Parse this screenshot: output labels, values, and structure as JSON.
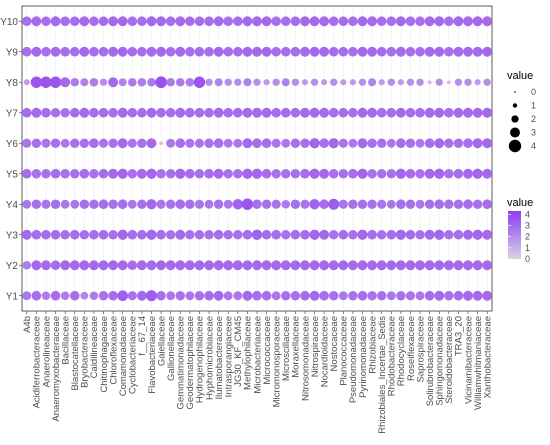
{
  "chart_data": {
    "type": "scatter",
    "subtype": "bubble-grid",
    "title": "",
    "xlabel": "",
    "ylabel": "",
    "x": [
      "A4b",
      "Acidiferrobacteraceae",
      "Anaerolineaceae",
      "Anaeromyxobacteraceae",
      "Bacillaceae",
      "Blastocatellaceae",
      "Bryobacteraceae",
      "Caldilineaceae",
      "Chitinophagaceae",
      "Chloroflexaceae",
      "Comamonadaceae",
      "Cyclobacteriaceae",
      "f__67_14",
      "Flavobacteriaceae",
      "Gaiellaceae",
      "Gallionellaceae",
      "Gemmatimonadaceae",
      "Geodermatophilaceae",
      "Hydrogenophilaceae",
      "Hyphomicrobiaceae",
      "Ilumatobacteraceae",
      "Intrasporangiaceae",
      "JG30_KF_CM45",
      "Methylophilaceae",
      "Microbacteriaceae",
      "Micrococcaceae",
      "Micromonosporaceae",
      "Microscillaceae",
      "Moraxellaceae",
      "Nitrosomonadaceae",
      "Nitrospiraceae",
      "Nocardioidaceae",
      "Nostocaceae",
      "Planococcaceae",
      "Pseudomonadaceae",
      "Pyrinomonadaceae",
      "Rhizobiaceae",
      "Rhizobiales_Incertae_Sedis",
      "Rhodobacteraceae",
      "Rhodocyclaceae",
      "Roseiflexaceae",
      "Saprospiraceae",
      "Solirubrobacteraceae",
      "Sphingomonadaceae",
      "Steroidobacteraceae",
      "TRA3_20",
      "Vicinamibacteraceae",
      "Williamwhitmaniaceae",
      "Xanthobacteraceae"
    ],
    "y": [
      "Y1",
      "Y2",
      "Y3",
      "Y4",
      "Y5",
      "Y6",
      "Y7",
      "Y8",
      "Y9",
      "Y10"
    ],
    "values": [
      [
        2.6,
        2.9,
        2.5,
        2.9,
        2.5,
        2.9,
        2.2,
        2.5,
        2.8,
        2.9,
        3.3,
        2.7,
        3.0,
        3.4,
        2.8,
        2.6,
        2.8,
        2.6,
        2.8,
        2.9,
        3.0,
        2.6,
        2.6,
        3.0,
        2.9,
        2.9,
        2.6,
        2.8,
        2.8,
        2.9,
        3.0,
        2.9,
        2.8,
        2.6,
        2.8,
        2.9,
        2.8,
        2.8,
        2.6,
        2.8,
        2.7,
        2.6,
        2.9,
        3.0,
        2.8,
        2.9,
        3.0,
        3.0,
        3.0
      ],
      [
        2.5,
        3.0,
        3.0,
        2.9,
        3.0,
        3.0,
        3.0,
        3.0,
        3.0,
        3.0,
        3.0,
        2.9,
        3.0,
        3.0,
        3.0,
        3.0,
        3.0,
        3.0,
        3.0,
        3.0,
        3.0,
        3.0,
        3.0,
        3.0,
        3.0,
        3.0,
        3.0,
        3.0,
        3.0,
        3.0,
        3.0,
        3.0,
        3.0,
        3.0,
        3.0,
        3.0,
        3.0,
        3.0,
        3.0,
        3.0,
        3.0,
        3.0,
        3.0,
        3.0,
        3.0,
        3.0,
        3.0,
        3.0,
        3.0
      ],
      [
        3.0,
        2.9,
        2.9,
        2.9,
        2.8,
        2.9,
        2.8,
        2.9,
        2.9,
        2.8,
        3.1,
        2.9,
        2.9,
        3.1,
        2.9,
        2.8,
        3.0,
        2.8,
        2.8,
        2.8,
        2.9,
        2.8,
        2.8,
        2.9,
        3.2,
        2.9,
        2.9,
        2.8,
        2.9,
        2.9,
        3.1,
        3.0,
        2.8,
        2.9,
        2.8,
        3.1,
        2.9,
        2.8,
        2.9,
        3.1,
        2.9,
        2.8,
        3.0,
        3.1,
        2.8,
        2.9,
        3.0,
        3.1,
        3.0
      ],
      [
        2.6,
        2.8,
        2.7,
        2.8,
        2.6,
        2.6,
        2.8,
        2.8,
        2.9,
        2.8,
        2.9,
        2.6,
        2.8,
        3.1,
        2.7,
        2.8,
        2.9,
        2.8,
        2.7,
        2.6,
        2.8,
        2.6,
        3.2,
        3.6,
        2.8,
        2.8,
        2.7,
        2.5,
        2.8,
        2.7,
        3.2,
        2.9,
        3.4,
        2.7,
        2.8,
        2.8,
        2.8,
        2.7,
        2.6,
        2.9,
        2.8,
        2.6,
        2.8,
        2.9,
        2.8,
        2.8,
        2.9,
        2.8,
        2.9
      ],
      [
        2.9,
        2.8,
        2.8,
        2.9,
        2.8,
        2.8,
        2.9,
        2.8,
        2.9,
        3.0,
        3.1,
        2.8,
        3.0,
        3.1,
        2.8,
        2.8,
        3.1,
        2.9,
        2.8,
        2.9,
        3.0,
        2.8,
        2.8,
        3.1,
        3.1,
        2.9,
        2.8,
        2.8,
        2.8,
        2.9,
        3.1,
        3.0,
        2.8,
        2.8,
        2.9,
        3.1,
        2.8,
        2.8,
        2.8,
        3.1,
        2.9,
        2.8,
        3.0,
        3.1,
        2.8,
        2.9,
        3.0,
        3.1,
        3.0
      ],
      [
        2.7,
        2.8,
        2.7,
        2.8,
        2.6,
        2.8,
        2.8,
        2.9,
        2.7,
        2.8,
        3.0,
        2.7,
        2.8,
        3.0,
        0.7,
        2.6,
        2.9,
        2.7,
        2.7,
        2.8,
        2.9,
        2.6,
        2.6,
        3.0,
        2.9,
        2.9,
        2.7,
        2.6,
        2.8,
        2.8,
        3.1,
        2.9,
        3.1,
        2.7,
        2.6,
        3.0,
        2.8,
        2.8,
        2.6,
        2.9,
        2.8,
        2.6,
        2.9,
        3.0,
        2.8,
        2.8,
        2.9,
        3.0,
        3.0
      ],
      [
        2.9,
        3.0,
        2.9,
        2.8,
        2.8,
        2.9,
        3.0,
        2.9,
        2.9,
        2.9,
        3.0,
        2.9,
        2.9,
        3.0,
        2.9,
        2.9,
        3.0,
        2.9,
        2.9,
        2.9,
        3.0,
        2.9,
        2.9,
        3.0,
        3.0,
        3.0,
        2.9,
        2.9,
        2.9,
        3.0,
        3.0,
        3.0,
        2.9,
        2.9,
        2.9,
        3.0,
        3.0,
        2.9,
        2.9,
        3.0,
        2.9,
        2.9,
        3.0,
        3.0,
        2.9,
        3.0,
        3.0,
        3.0,
        3.0
      ],
      [
        1.5,
        3.6,
        3.6,
        3.6,
        3.0,
        2.5,
        2.3,
        2.5,
        2.0,
        3.0,
        2.3,
        2.5,
        2.5,
        2.5,
        3.7,
        2.5,
        2.5,
        2.5,
        3.6,
        2.0,
        2.3,
        2.0,
        2.0,
        2.3,
        2.0,
        1.6,
        2.0,
        2.3,
        2.0,
        1.6,
        2.0,
        1.6,
        2.0,
        1.6,
        1.6,
        2.0,
        2.3,
        1.6,
        2.0,
        1.6,
        2.0,
        2.0,
        0.8,
        2.0,
        0.8,
        2.0,
        2.0,
        1.6,
        2.0
      ],
      [
        2.9,
        3.0,
        2.9,
        3.0,
        2.9,
        2.9,
        3.0,
        2.9,
        2.9,
        3.0,
        3.0,
        2.9,
        2.9,
        3.0,
        3.0,
        2.9,
        3.0,
        2.9,
        2.9,
        2.9,
        3.0,
        2.9,
        2.9,
        3.0,
        3.0,
        3.0,
        2.9,
        2.9,
        2.9,
        3.0,
        3.0,
        3.0,
        2.9,
        2.9,
        2.9,
        3.0,
        3.0,
        2.9,
        2.9,
        3.0,
        2.9,
        2.9,
        3.0,
        3.0,
        2.9,
        3.0,
        3.0,
        3.0,
        3.0
      ],
      [
        2.9,
        3.0,
        2.9,
        3.0,
        2.9,
        2.9,
        3.0,
        2.9,
        2.9,
        3.0,
        3.0,
        2.9,
        2.9,
        3.0,
        3.0,
        2.9,
        3.0,
        2.9,
        2.9,
        2.9,
        3.0,
        2.9,
        2.9,
        3.0,
        3.0,
        3.0,
        2.9,
        2.9,
        2.9,
        3.0,
        3.0,
        3.0,
        2.9,
        2.9,
        2.9,
        3.0,
        3.0,
        2.9,
        2.9,
        3.0,
        2.9,
        2.9,
        3.0,
        3.0,
        2.9,
        3.0,
        3.0,
        3.0,
        3.0
      ]
    ],
    "size_legend": {
      "title": "value",
      "breaks": [
        "0",
        "1",
        "2",
        "3",
        "4"
      ]
    },
    "color_legend": {
      "title": "value",
      "breaks": [
        "4",
        "3",
        "2",
        "1",
        "0"
      ],
      "low_color": "#d7d4e4",
      "high_color": "#8f3cf0",
      "range": [
        0,
        4.3
      ]
    },
    "grid": true,
    "legend_position": "right",
    "highlight_color": "#e0245e",
    "highlighted_labels": [
      "Chloroflexaceae",
      "Flavobacteriaceae",
      "Hyphomicrobiaceae",
      "Intrasporangiaceae"
    ]
  }
}
